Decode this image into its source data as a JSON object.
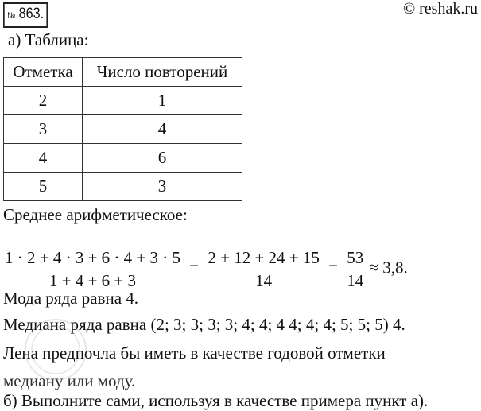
{
  "header": {
    "number_sign": "№",
    "number": "863.",
    "copyright": "© reshak.ru"
  },
  "part_a_label": "а) Таблица:",
  "table": {
    "headers": [
      "Отметка",
      "Число повторений"
    ],
    "rows": [
      [
        "2",
        "1"
      ],
      [
        "3",
        "4"
      ],
      [
        "4",
        "6"
      ],
      [
        "5",
        "3"
      ]
    ]
  },
  "mean_label": "Среднее арифметическое:",
  "formula": {
    "num1": "1 · 2 + 4 · 3 + 6 · 4 + 3 · 5",
    "den1": "1 + 4 + 6 + 3",
    "eq1": "=",
    "num2": "2 + 12 + 24 + 15",
    "den2": "14",
    "eq2": "=",
    "num3": "53",
    "den3": "14",
    "result": "≈ 3,8."
  },
  "mode_text": "Мода ряда равна 4.",
  "median_text": "Медиана ряда равна (2; 3; 3; 3; 3; 4; 4; 4 4; 4; 4; 5; 5; 5) 4.",
  "conclusion_line1": "Лена предпочла бы иметь в качестве годовой отметки",
  "conclusion_line2": "медиану или моду.",
  "part_b_text": "б) Выполните сами, используя в качестве примера пункт а)."
}
